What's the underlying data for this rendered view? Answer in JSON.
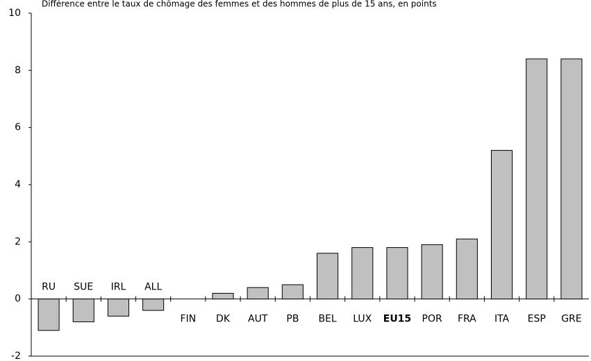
{
  "chart_data": {
    "type": "bar",
    "title": "Différence entre le taux de chômage des femmes et des hommes de plus de 15 ans, en points",
    "categories": [
      "RU",
      "SUE",
      "IRL",
      "ALL",
      "FIN",
      "DK",
      "AUT",
      "PB",
      "BEL",
      "LUX",
      "EU15",
      "POR",
      "FRA",
      "ITA",
      "ESP",
      "GRE"
    ],
    "values": [
      -1.1,
      -0.8,
      -0.6,
      -0.4,
      0,
      0.2,
      0.4,
      0.5,
      1.6,
      1.8,
      1.8,
      1.9,
      2.1,
      5.2,
      8.4,
      8.4
    ],
    "color": "#c0c0c0",
    "bold_categories": [
      10
    ],
    "ylim": [
      -2,
      10
    ],
    "yticks": [
      -2,
      0,
      2,
      4,
      6,
      8,
      10
    ],
    "grid": false
  }
}
